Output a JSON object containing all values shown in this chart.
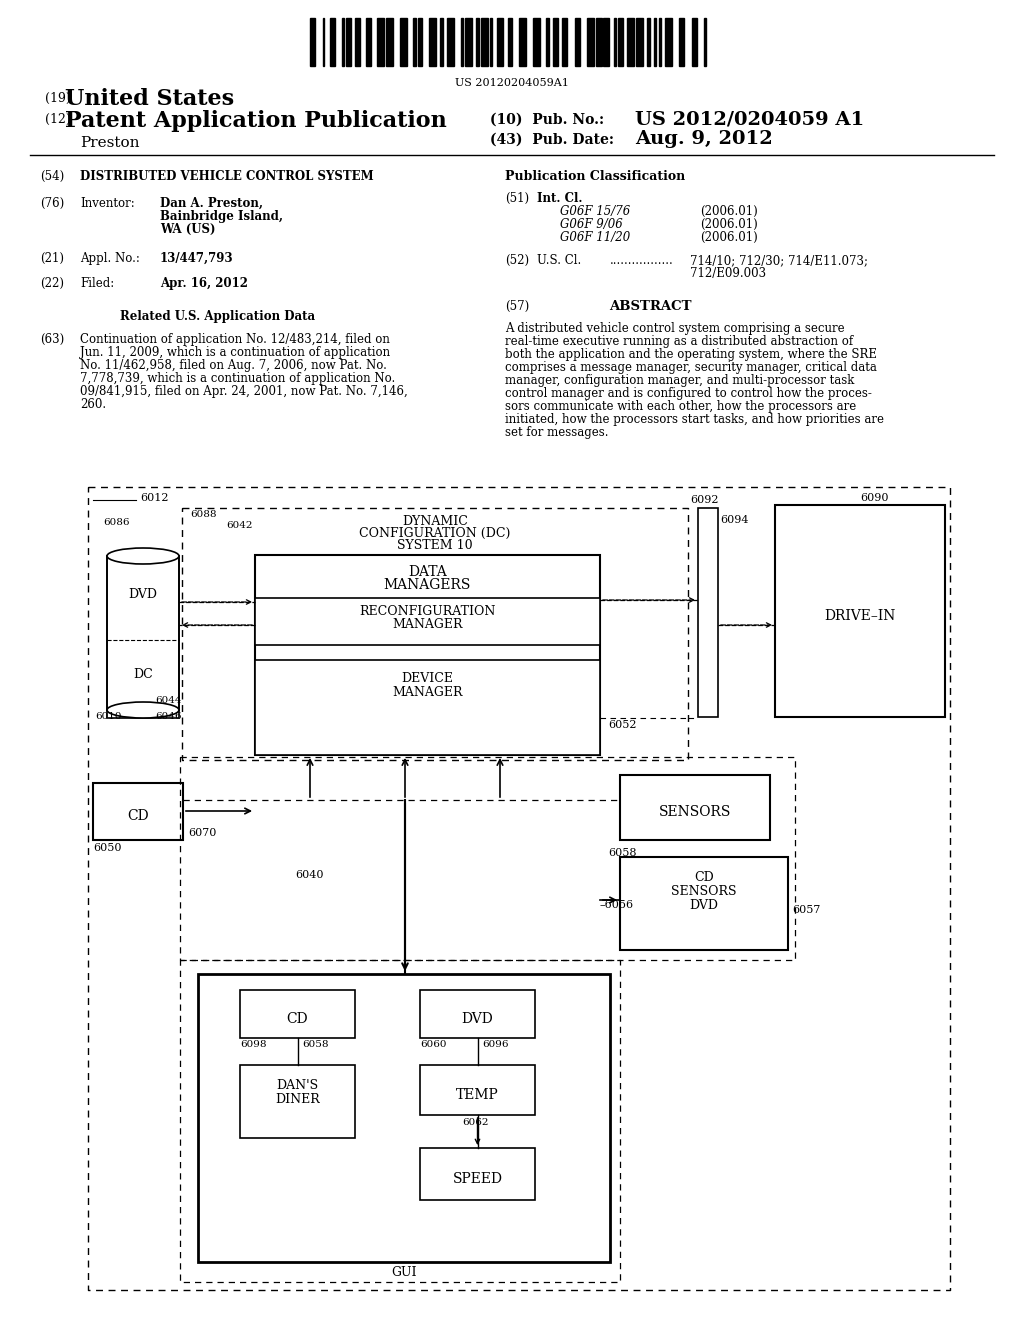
{
  "bg_color": "#ffffff",
  "barcode_text": "US 20120204059A1",
  "title_19_small": "(19)",
  "title_19_large": "United States",
  "title_12_small": "(12)",
  "title_12_large": "Patent Application Publication",
  "inventor_name": "Preston",
  "pub_no_label": "(10)  Pub. No.:",
  "pub_no_val": "US 2012/0204059 A1",
  "pub_date_label": "(43)  Pub. Date:",
  "pub_date_val": "Aug. 9, 2012",
  "field54_label": "(54)",
  "field54_val": "DISTRIBUTED VEHICLE CONTROL SYSTEM",
  "field76_label": "(76)",
  "field76_title": "Inventor:",
  "field76_name": "Dan A. Preston,",
  "field76_addr1": "Bainbridge Island,",
  "field76_addr2": "WA (US)",
  "field21_label": "(21)",
  "field21_title": "Appl. No.:",
  "field21_val": "13/447,793",
  "field22_label": "(22)",
  "field22_title": "Filed:",
  "field22_val": "Apr. 16, 2012",
  "related_title": "Related U.S. Application Data",
  "field63_label": "(63)",
  "field63_lines": [
    "Continuation of application No. 12/483,214, filed on",
    "Jun. 11, 2009, which is a continuation of application",
    "No. 11/462,958, filed on Aug. 7, 2006, now Pat. No.",
    "7,778,739, which is a continuation of application No.",
    "09/841,915, filed on Apr. 24, 2001, now Pat. No. 7,146,",
    "260."
  ],
  "pub_class_title": "Publication Classification",
  "field51_label": "(51)",
  "field51_title": "Int. Cl.",
  "field51_lines": [
    [
      "G06F 15/76",
      "(2006.01)"
    ],
    [
      "G06F 9/06",
      "(2006.01)"
    ],
    [
      "G06F 11/20",
      "(2006.01)"
    ]
  ],
  "field52_label": "(52)",
  "field52_title": "U.S. Cl.",
  "field52_line1": "714/10; 712/30; 714/E11.073;",
  "field52_line2": "712/E09.003",
  "field57_label": "(57)",
  "field57_title": "ABSTRACT",
  "abstract_lines": [
    "A distributed vehicle control system comprising a secure",
    "real-time executive running as a distributed abstraction of",
    "both the application and the operating system, where the SRE",
    "comprises a message manager, security manager, critical data",
    "manager, configuration manager, and multi-processor task",
    "control manager and is configured to control how the proces-",
    "sors communicate with each other, how the processors are",
    "initiated, how the processors start tasks, and how priorities are",
    "set for messages."
  ]
}
